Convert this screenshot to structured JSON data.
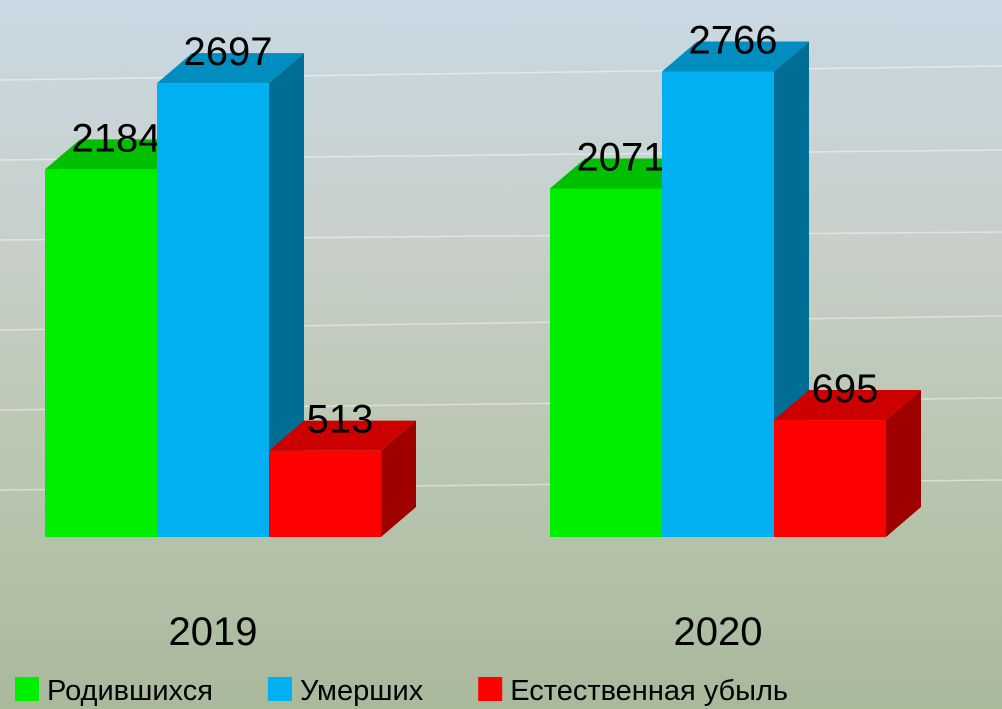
{
  "chart_data": {
    "type": "bar3d",
    "categories": [
      "2019",
      "2020"
    ],
    "series": [
      {
        "name": "Родившихся",
        "color": "#00ee00",
        "values": [
          2184,
          2071
        ]
      },
      {
        "name": "Умерших",
        "color": "#00b0f0",
        "values": [
          2697,
          2766
        ]
      },
      {
        "name": "Естественная убыль",
        "color": "#ff0000",
        "values": [
          513,
          695
        ]
      }
    ]
  }
}
